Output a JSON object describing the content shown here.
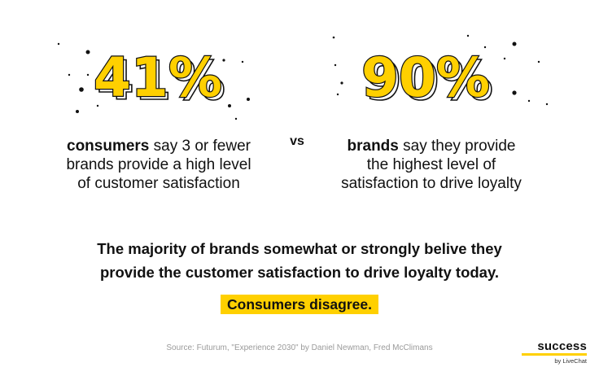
{
  "left_stat": {
    "number": "41%",
    "bold": "consumers",
    "rest_line1": " say 3 or fewer",
    "line2": "brands provide a high level",
    "line3": "of customer satisfaction"
  },
  "vs_label": "vs",
  "right_stat": {
    "number": "90%",
    "bold": "brands",
    "rest_line1": " say they provide",
    "line2": "the highest level of",
    "line3": "satisfaction to drive loyalty"
  },
  "headline": {
    "line1": "The majority of brands somewhat or strongly belive they",
    "line2": "provide the customer satisfaction to drive loyalty today."
  },
  "highlight": "Consumers disagree.",
  "source": "Source: Futurum, \"Experience 2030\" by Daniel Newman, Fred McClimans",
  "brand": {
    "name": "success",
    "sub": "by LiveChat"
  },
  "colors": {
    "accent": "#ffd000",
    "text": "#111111",
    "muted": "#9a9a9a"
  }
}
